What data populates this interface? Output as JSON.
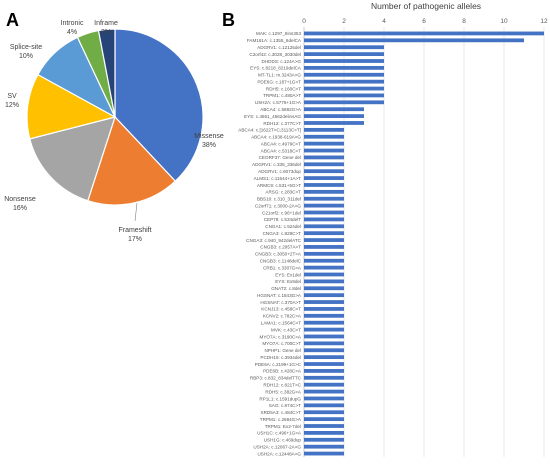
{
  "panels": {
    "a": "A",
    "b": "B"
  },
  "chart_data": [
    {
      "type": "pie",
      "slices": [
        {
          "label": "Missense",
          "pct_label": "38%",
          "value": 38,
          "color": "#4472c4"
        },
        {
          "label": "Frameshift",
          "pct_label": "17%",
          "value": 17,
          "color": "#ed7d31"
        },
        {
          "label": "Nonsense",
          "pct_label": "16%",
          "value": 16,
          "color": "#a5a5a5"
        },
        {
          "label": "SV",
          "pct_label": "12%",
          "value": 12,
          "color": "#ffc000"
        },
        {
          "label": "Splice-site",
          "pct_label": "10%",
          "value": 10,
          "color": "#5b9bd5"
        },
        {
          "label": "Intronic",
          "pct_label": "4%",
          "value": 4,
          "color": "#70ad47"
        },
        {
          "label": "Inframe",
          "pct_label": "3%",
          "value": 3,
          "color": "#264478"
        }
      ]
    },
    {
      "type": "bar",
      "orientation": "horizontal",
      "title": "Number of pathogenic alleles",
      "xlim": [
        0,
        12
      ],
      "xticks": [
        0,
        2,
        4,
        6,
        8,
        10,
        12
      ],
      "color": "#4472c4",
      "grid": true,
      "categories": [
        "MAK: c.1297_8ins353",
        "FAM161A: c.1355_6delCA",
        "ADGRV1: c.12125del",
        "C2orf42: c.3028_3030del",
        "DHDDS: c.124A>G",
        "EYS: c.8218_8219delCA",
        "MT-TL1: m.3243A>G",
        "PDE6G: c.187+1G>T",
        "RDH5: c.160C>T",
        "TRPM1: c.480A>T",
        "USH2A: c.5776+1G>A",
        "ABCA4: c.5882G>A",
        "EYS: c.4561_4562delinsAG",
        "RDH12: c.377C>T",
        "ABCA4: c.[1622T>C;3113C>T]",
        "ABCA4: c.1938-619A>G",
        "ABCA4: c.4979C>T",
        "ABCA4: c.5318C>T",
        "CEORF37: Gene del",
        "ADGRV1: c.335_336del",
        "ADGRV1: c.6073dup",
        "ALMS1: c.11544+1A>T",
        "ARMC9: c.531+5G>T",
        "ARSG: c.283C>T",
        "BBS10: c.310_311del",
        "C2orf71: c.3000-2A>G",
        "C21orf2: c.96+1del",
        "CEP78: c.534delT",
        "CNGA1: c.524del",
        "CNGA3: c.829C>T",
        "CNGA3: c.940_942delATC",
        "CNGB3: c.2957A>T",
        "CNGB3: c.3050+2T>A",
        "CNGB3: c.1148delC",
        "CRB1: c.3307G>A",
        "EYS: Ex1del",
        "EYS: Ex9del",
        "GNAT2: c.8del",
        "HGSNAT: c.1843G>A",
        "HGSNAT: c.370A>T",
        "KCNJ13: c.458C>T",
        "KCNV2: c.782C>A",
        "LAMA1: c.1564C>T",
        "MVK: c.43C>T",
        "MYO7A: c.3190C>A",
        "MYO7A: c.700C>T",
        "NPHP1: Gene del",
        "PCDH15: c.3934del",
        "PDE6A: c.2199+1G>C",
        "PDE6B: c.428C>A",
        "RBP3: c.832_834delTTC",
        "RDH12: c.821T>C",
        "RDH5: c.382G>A",
        "RP1L1: c.1591dupG",
        "SAG: c.874C>T",
        "SRD5A3: c.484C>T",
        "TRPM1: c.2684G>A",
        "TRPM1: Ex2-7del",
        "USH1C: c.496+1G>A",
        "USH1G: c.469dup",
        "USH2A: c.12067-2A>G",
        "USH2A: c.12448A>G"
      ],
      "values": [
        12,
        11,
        4,
        4,
        4,
        4,
        4,
        4,
        4,
        4,
        4,
        3,
        3,
        3,
        2,
        2,
        2,
        2,
        2,
        2,
        2,
        2,
        2,
        2,
        2,
        2,
        2,
        2,
        2,
        2,
        2,
        2,
        2,
        2,
        2,
        2,
        2,
        2,
        2,
        2,
        2,
        2,
        2,
        2,
        2,
        2,
        2,
        2,
        2,
        2,
        2,
        2,
        2,
        2,
        2,
        2,
        2,
        2,
        2,
        2,
        2,
        2
      ]
    }
  ]
}
